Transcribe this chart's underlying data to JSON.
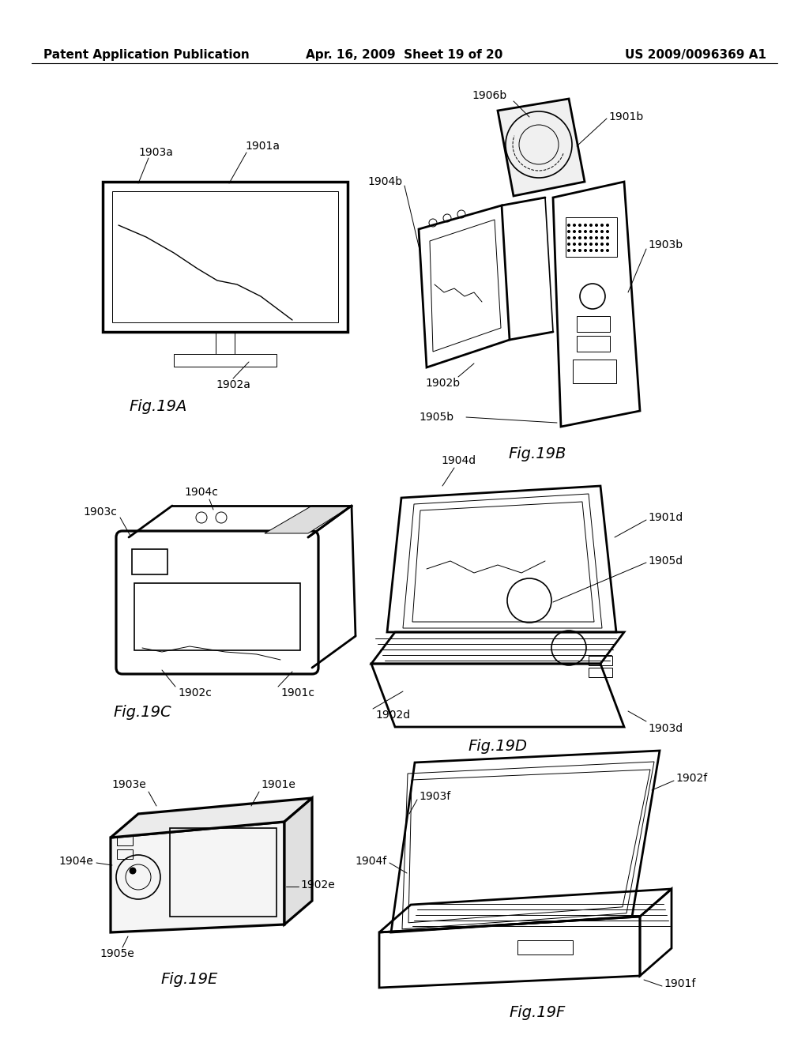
{
  "background_color": "#ffffff",
  "header_left": "Patent Application Publication",
  "header_center": "Apr. 16, 2009  Sheet 19 of 20",
  "header_right": "US 2009/0096369 A1",
  "fig_label_fontsize": 14,
  "ref_fontsize": 10,
  "lw_thick": 2.0,
  "lw_med": 1.2,
  "lw_thin": 0.7
}
